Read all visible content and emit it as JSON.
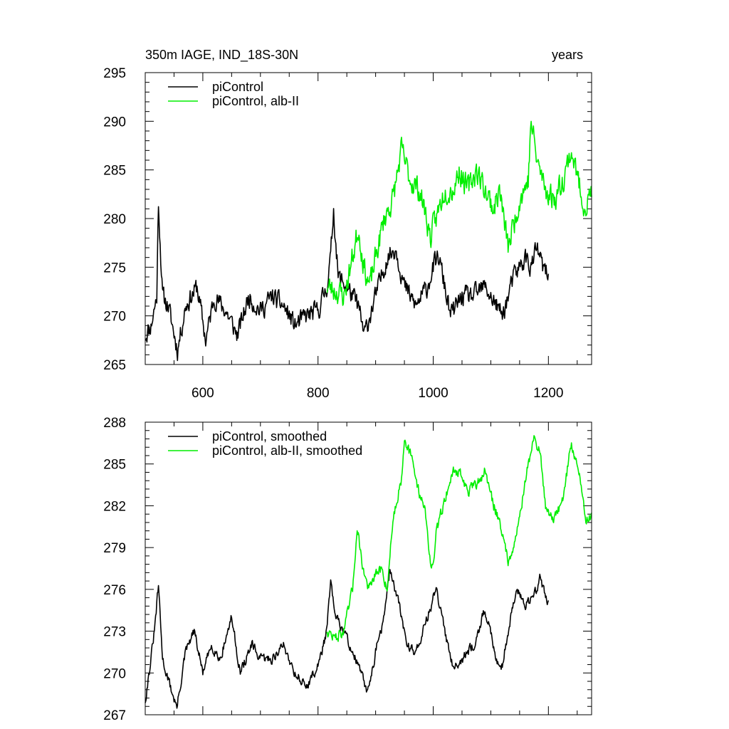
{
  "chart_data": [
    {
      "type": "line",
      "title_left": "350m IAGE, IND_18S-30N",
      "title_right": "years",
      "xlim": [
        500,
        1275
      ],
      "ylim": [
        265,
        295
      ],
      "xticks": [
        600,
        800,
        1000,
        1200
      ],
      "yticks": [
        265,
        270,
        275,
        280,
        285,
        290,
        295
      ],
      "grid": false,
      "legend_position": "top-left",
      "series": [
        {
          "name": "piControl",
          "color": "#000000",
          "x_range": [
            500,
            1200
          ],
          "anchors": [
            [
              500,
              268
            ],
            [
              510,
              269
            ],
            [
              520,
              272
            ],
            [
              523,
              281.8
            ],
            [
              530,
              272
            ],
            [
              540,
              271
            ],
            [
              556,
              266.5
            ],
            [
              570,
              271
            ],
            [
              590,
              273
            ],
            [
              605,
              267.5
            ],
            [
              620,
              272
            ],
            [
              640,
              270.5
            ],
            [
              660,
              268
            ],
            [
              680,
              272
            ],
            [
              700,
              270.5
            ],
            [
              720,
              272
            ],
            [
              740,
              271
            ],
            [
              760,
              269
            ],
            [
              780,
              270
            ],
            [
              800,
              270.5
            ],
            [
              815,
              273
            ],
            [
              822,
              276
            ],
            [
              827,
              281
            ],
            [
              835,
              274
            ],
            [
              850,
              273
            ],
            [
              870,
              271
            ],
            [
              880,
              268
            ],
            [
              890,
              270
            ],
            [
              905,
              273
            ],
            [
              920,
              276
            ],
            [
              935,
              277
            ],
            [
              950,
              273
            ],
            [
              970,
              271
            ],
            [
              990,
              273
            ],
            [
              1000,
              275
            ],
            [
              1010,
              276
            ],
            [
              1020,
              273
            ],
            [
              1030,
              270
            ],
            [
              1050,
              272
            ],
            [
              1070,
              272
            ],
            [
              1090,
              273
            ],
            [
              1110,
              271
            ],
            [
              1120,
              270
            ],
            [
              1130,
              272
            ],
            [
              1140,
              274
            ],
            [
              1160,
              276
            ],
            [
              1170,
              275
            ],
            [
              1180,
              277
            ],
            [
              1190,
              275
            ],
            [
              1200,
              274
            ]
          ],
          "noise": 1.6,
          "seed": 11
        },
        {
          "name": "piControl, alb-II",
          "color": "#00ee00",
          "x_range": [
            815,
            1275
          ],
          "anchors": [
            [
              815,
              273
            ],
            [
              835,
              272.5
            ],
            [
              845,
              272
            ],
            [
              860,
              276
            ],
            [
              870,
              279
            ],
            [
              880,
              275
            ],
            [
              890,
              273
            ],
            [
              900,
              276
            ],
            [
              915,
              280
            ],
            [
              930,
              282
            ],
            [
              945,
              287
            ],
            [
              960,
              284
            ],
            [
              975,
              283
            ],
            [
              985,
              281
            ],
            [
              995,
              278
            ],
            [
              1005,
              280
            ],
            [
              1020,
              283
            ],
            [
              1035,
              283
            ],
            [
              1045,
              285
            ],
            [
              1060,
              283
            ],
            [
              1075,
              285
            ],
            [
              1090,
              283
            ],
            [
              1105,
              281
            ],
            [
              1115,
              283
            ],
            [
              1130,
              277
            ],
            [
              1150,
              282
            ],
            [
              1165,
              284
            ],
            [
              1170,
              290
            ],
            [
              1180,
              286
            ],
            [
              1195,
              283
            ],
            [
              1210,
              282
            ],
            [
              1225,
              284
            ],
            [
              1240,
              287
            ],
            [
              1255,
              283
            ],
            [
              1265,
              281
            ],
            [
              1275,
              283
            ]
          ],
          "noise": 2.0,
          "seed": 23
        }
      ]
    },
    {
      "type": "line",
      "xlim": [
        500,
        1275
      ],
      "ylim": [
        267,
        288
      ],
      "xticks": [
        600,
        800,
        1000,
        1200
      ],
      "yticks": [
        267,
        270,
        273,
        276,
        279,
        282,
        285,
        288
      ],
      "grid": false,
      "legend_position": "top-left",
      "series": [
        {
          "name": "piControl, smoothed",
          "color": "#000000",
          "x_range": [
            500,
            1200
          ],
          "anchors": [
            [
              500,
              268
            ],
            [
              510,
              271
            ],
            [
              516,
              273
            ],
            [
              523,
              276.3
            ],
            [
              530,
              271
            ],
            [
              540,
              269.5
            ],
            [
              555,
              267.5
            ],
            [
              570,
              271.5
            ],
            [
              585,
              273
            ],
            [
              600,
              270
            ],
            [
              615,
              272
            ],
            [
              630,
              271
            ],
            [
              650,
              274
            ],
            [
              665,
              270
            ],
            [
              685,
              272
            ],
            [
              700,
              271
            ],
            [
              720,
              271
            ],
            [
              740,
              272
            ],
            [
              760,
              270
            ],
            [
              780,
              269
            ],
            [
              800,
              270.5
            ],
            [
              815,
              273
            ],
            [
              822,
              276.5
            ],
            [
              830,
              274
            ],
            [
              845,
              273
            ],
            [
              860,
              271.5
            ],
            [
              875,
              270
            ],
            [
              885,
              268.5
            ],
            [
              900,
              271.5
            ],
            [
              915,
              274
            ],
            [
              925,
              277.5
            ],
            [
              940,
              275
            ],
            [
              955,
              272
            ],
            [
              970,
              271.5
            ],
            [
              990,
              274
            ],
            [
              1005,
              276
            ],
            [
              1020,
              273
            ],
            [
              1035,
              270.5
            ],
            [
              1050,
              271
            ],
            [
              1070,
              272
            ],
            [
              1090,
              274.5
            ],
            [
              1110,
              271
            ],
            [
              1120,
              270.5
            ],
            [
              1130,
              273
            ],
            [
              1145,
              276
            ],
            [
              1160,
              275
            ],
            [
              1175,
              275.5
            ],
            [
              1185,
              276.8
            ],
            [
              1200,
              275
            ]
          ],
          "noise": 0.55,
          "seed": 31
        },
        {
          "name": "piControl, alb-II, smoothed",
          "color": "#00ee00",
          "x_range": [
            815,
            1275
          ],
          "anchors": [
            [
              815,
              273
            ],
            [
              830,
              272.5
            ],
            [
              845,
              273
            ],
            [
              860,
              276
            ],
            [
              868,
              280.5
            ],
            [
              878,
              277.5
            ],
            [
              888,
              276
            ],
            [
              900,
              277
            ],
            [
              910,
              277.5
            ],
            [
              920,
              276
            ],
            [
              930,
              281
            ],
            [
              945,
              284
            ],
            [
              950,
              287
            ],
            [
              965,
              285
            ],
            [
              975,
              283
            ],
            [
              985,
              282
            ],
            [
              995,
              278
            ],
            [
              1000,
              277.5
            ],
            [
              1005,
              280
            ],
            [
              1020,
              282.5
            ],
            [
              1035,
              284.5
            ],
            [
              1045,
              284.5
            ],
            [
              1060,
              283
            ],
            [
              1075,
              283.5
            ],
            [
              1090,
              284.5
            ],
            [
              1105,
              282
            ],
            [
              1115,
              281
            ],
            [
              1130,
              278
            ],
            [
              1145,
              280
            ],
            [
              1165,
              285
            ],
            [
              1175,
              286.8
            ],
            [
              1185,
              286
            ],
            [
              1195,
              282
            ],
            [
              1210,
              281
            ],
            [
              1225,
              282.5
            ],
            [
              1240,
              286.5
            ],
            [
              1255,
              284
            ],
            [
              1265,
              281
            ],
            [
              1275,
              281.3
            ]
          ],
          "noise": 0.6,
          "seed": 47
        }
      ]
    }
  ]
}
